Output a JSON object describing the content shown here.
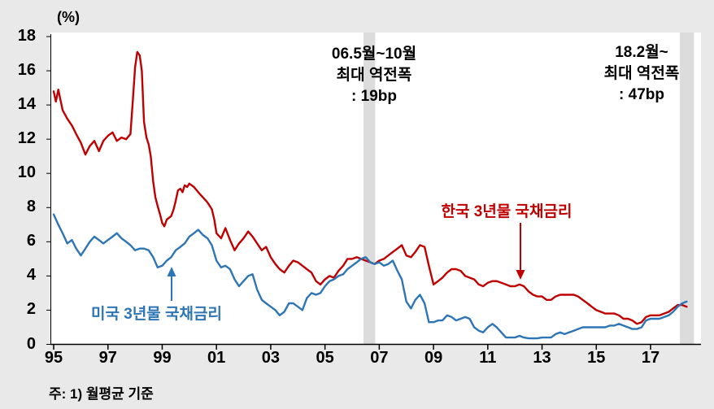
{
  "colors": {
    "korea": "#c00000",
    "us": "#2e75b6",
    "band": "#dcdcdc",
    "axis": "#000000",
    "background": "#e9e9e9",
    "plot_background": "#ffffff"
  },
  "footnote": "주: 1) 월평균 기준",
  "chart_data": {
    "type": "line",
    "title": "",
    "unit_label": "(%)",
    "xlabel": "",
    "ylabel": "",
    "xlim": [
      1995,
      2018.9
    ],
    "ylim": [
      0,
      18
    ],
    "grid": false,
    "legend_position": "inline-labels-with-arrows",
    "y_ticks": [
      0,
      2,
      4,
      6,
      8,
      10,
      12,
      14,
      16,
      18
    ],
    "x_tick_labels": [
      "95",
      "97",
      "99",
      "01",
      "03",
      "05",
      "07",
      "09",
      "11",
      "13",
      "15",
      "17"
    ],
    "x_tick_years": [
      1995,
      1997,
      1999,
      2001,
      2003,
      2005,
      2007,
      2009,
      2011,
      2013,
      2015,
      2017
    ],
    "shaded_bands": [
      {
        "x_start": 2006.42,
        "x_end": 2006.85,
        "label": "2006 yield inversion period"
      },
      {
        "x_start": 2018.08,
        "x_end": 2018.6,
        "label": "2018 yield inversion period"
      }
    ],
    "annotations": [
      {
        "lines": [
          "06.5월~10월",
          "최대 역전폭",
          ": 19bp"
        ]
      },
      {
        "lines": [
          "18.2월~",
          "최대 역전폭",
          ": 47bp"
        ]
      }
    ],
    "series": [
      {
        "name": "한국 3년물 국채금리",
        "color": "#c00000",
        "points": [
          [
            1995.0,
            14.8
          ],
          [
            1995.08,
            14.2
          ],
          [
            1995.17,
            14.9
          ],
          [
            1995.33,
            13.7
          ],
          [
            1995.5,
            13.2
          ],
          [
            1995.67,
            12.8
          ],
          [
            1995.83,
            12.3
          ],
          [
            1996.0,
            11.8
          ],
          [
            1996.17,
            11.1
          ],
          [
            1996.33,
            11.6
          ],
          [
            1996.5,
            11.9
          ],
          [
            1996.67,
            11.3
          ],
          [
            1996.83,
            11.9
          ],
          [
            1997.0,
            12.2
          ],
          [
            1997.17,
            12.4
          ],
          [
            1997.33,
            11.9
          ],
          [
            1997.5,
            12.1
          ],
          [
            1997.67,
            12.0
          ],
          [
            1997.83,
            12.3
          ],
          [
            1997.92,
            14.3
          ],
          [
            1998.0,
            16.2
          ],
          [
            1998.08,
            17.1
          ],
          [
            1998.17,
            16.9
          ],
          [
            1998.25,
            16.0
          ],
          [
            1998.33,
            13.0
          ],
          [
            1998.42,
            12.1
          ],
          [
            1998.5,
            11.7
          ],
          [
            1998.58,
            11.0
          ],
          [
            1998.67,
            9.5
          ],
          [
            1998.75,
            8.6
          ],
          [
            1998.83,
            8.1
          ],
          [
            1998.92,
            7.6
          ],
          [
            1999.0,
            7.1
          ],
          [
            1999.08,
            6.9
          ],
          [
            1999.17,
            7.3
          ],
          [
            1999.33,
            7.5
          ],
          [
            1999.42,
            7.9
          ],
          [
            1999.5,
            8.4
          ],
          [
            1999.58,
            9.0
          ],
          [
            1999.67,
            9.1
          ],
          [
            1999.75,
            8.9
          ],
          [
            1999.83,
            9.3
          ],
          [
            1999.92,
            9.2
          ],
          [
            2000.0,
            9.4
          ],
          [
            2000.17,
            9.2
          ],
          [
            2000.33,
            8.9
          ],
          [
            2000.5,
            8.6
          ],
          [
            2000.67,
            8.3
          ],
          [
            2000.83,
            7.9
          ],
          [
            2000.92,
            7.3
          ],
          [
            2001.0,
            6.5
          ],
          [
            2001.17,
            6.2
          ],
          [
            2001.33,
            6.8
          ],
          [
            2001.5,
            6.1
          ],
          [
            2001.67,
            5.5
          ],
          [
            2001.83,
            5.9
          ],
          [
            2002.0,
            6.2
          ],
          [
            2002.17,
            6.6
          ],
          [
            2002.33,
            6.3
          ],
          [
            2002.5,
            5.9
          ],
          [
            2002.67,
            5.5
          ],
          [
            2002.83,
            5.7
          ],
          [
            2003.0,
            5.1
          ],
          [
            2003.17,
            4.7
          ],
          [
            2003.33,
            4.4
          ],
          [
            2003.5,
            4.2
          ],
          [
            2003.67,
            4.6
          ],
          [
            2003.83,
            4.9
          ],
          [
            2004.0,
            4.8
          ],
          [
            2004.17,
            4.6
          ],
          [
            2004.33,
            4.4
          ],
          [
            2004.5,
            4.2
          ],
          [
            2004.67,
            3.7
          ],
          [
            2004.83,
            3.5
          ],
          [
            2005.0,
            3.8
          ],
          [
            2005.17,
            4.0
          ],
          [
            2005.33,
            3.9
          ],
          [
            2005.5,
            4.3
          ],
          [
            2005.67,
            4.6
          ],
          [
            2005.83,
            5.0
          ],
          [
            2006.0,
            5.0
          ],
          [
            2006.17,
            5.1
          ],
          [
            2006.33,
            5.0
          ],
          [
            2006.5,
            4.9
          ],
          [
            2006.67,
            4.8
          ],
          [
            2006.83,
            4.7
          ],
          [
            2007.0,
            4.9
          ],
          [
            2007.17,
            5.0
          ],
          [
            2007.33,
            5.2
          ],
          [
            2007.5,
            5.4
          ],
          [
            2007.67,
            5.6
          ],
          [
            2007.83,
            5.8
          ],
          [
            2008.0,
            5.2
          ],
          [
            2008.17,
            5.1
          ],
          [
            2008.33,
            5.4
          ],
          [
            2008.5,
            5.8
          ],
          [
            2008.67,
            5.7
          ],
          [
            2008.83,
            4.6
          ],
          [
            2009.0,
            3.5
          ],
          [
            2009.17,
            3.7
          ],
          [
            2009.33,
            3.9
          ],
          [
            2009.5,
            4.2
          ],
          [
            2009.67,
            4.4
          ],
          [
            2009.83,
            4.4
          ],
          [
            2010.0,
            4.3
          ],
          [
            2010.17,
            4.0
          ],
          [
            2010.33,
            3.9
          ],
          [
            2010.5,
            3.8
          ],
          [
            2010.67,
            3.5
          ],
          [
            2010.83,
            3.4
          ],
          [
            2011.0,
            3.6
          ],
          [
            2011.17,
            3.7
          ],
          [
            2011.33,
            3.7
          ],
          [
            2011.5,
            3.6
          ],
          [
            2011.67,
            3.5
          ],
          [
            2011.83,
            3.4
          ],
          [
            2012.0,
            3.4
          ],
          [
            2012.17,
            3.5
          ],
          [
            2012.33,
            3.4
          ],
          [
            2012.5,
            3.1
          ],
          [
            2012.67,
            2.9
          ],
          [
            2012.83,
            2.8
          ],
          [
            2013.0,
            2.8
          ],
          [
            2013.17,
            2.6
          ],
          [
            2013.33,
            2.6
          ],
          [
            2013.5,
            2.8
          ],
          [
            2013.67,
            2.9
          ],
          [
            2013.83,
            2.9
          ],
          [
            2014.0,
            2.9
          ],
          [
            2014.17,
            2.9
          ],
          [
            2014.33,
            2.8
          ],
          [
            2014.5,
            2.6
          ],
          [
            2014.67,
            2.4
          ],
          [
            2014.83,
            2.2
          ],
          [
            2015.0,
            2.0
          ],
          [
            2015.17,
            1.9
          ],
          [
            2015.33,
            1.8
          ],
          [
            2015.5,
            1.8
          ],
          [
            2015.67,
            1.8
          ],
          [
            2015.83,
            1.7
          ],
          [
            2016.0,
            1.5
          ],
          [
            2016.17,
            1.5
          ],
          [
            2016.33,
            1.4
          ],
          [
            2016.5,
            1.2
          ],
          [
            2016.67,
            1.3
          ],
          [
            2016.83,
            1.6
          ],
          [
            2017.0,
            1.7
          ],
          [
            2017.17,
            1.7
          ],
          [
            2017.33,
            1.7
          ],
          [
            2017.5,
            1.8
          ],
          [
            2017.67,
            1.9
          ],
          [
            2017.83,
            2.1
          ],
          [
            2018.0,
            2.3
          ],
          [
            2018.17,
            2.3
          ],
          [
            2018.33,
            2.2
          ]
        ]
      },
      {
        "name": "미국 3년물 국채금리",
        "color": "#2e75b6",
        "points": [
          [
            1995.0,
            7.6
          ],
          [
            1995.17,
            7.0
          ],
          [
            1995.33,
            6.5
          ],
          [
            1995.5,
            5.9
          ],
          [
            1995.67,
            6.1
          ],
          [
            1995.83,
            5.6
          ],
          [
            1996.0,
            5.2
          ],
          [
            1996.17,
            5.6
          ],
          [
            1996.33,
            6.0
          ],
          [
            1996.5,
            6.3
          ],
          [
            1996.67,
            6.1
          ],
          [
            1996.83,
            5.9
          ],
          [
            1997.0,
            6.1
          ],
          [
            1997.17,
            6.3
          ],
          [
            1997.33,
            6.5
          ],
          [
            1997.5,
            6.2
          ],
          [
            1997.67,
            6.0
          ],
          [
            1997.83,
            5.8
          ],
          [
            1998.0,
            5.5
          ],
          [
            1998.17,
            5.6
          ],
          [
            1998.33,
            5.6
          ],
          [
            1998.5,
            5.5
          ],
          [
            1998.67,
            5.1
          ],
          [
            1998.83,
            4.5
          ],
          [
            1999.0,
            4.6
          ],
          [
            1999.17,
            4.9
          ],
          [
            1999.33,
            5.1
          ],
          [
            1999.5,
            5.5
          ],
          [
            1999.67,
            5.7
          ],
          [
            1999.83,
            5.9
          ],
          [
            2000.0,
            6.3
          ],
          [
            2000.17,
            6.5
          ],
          [
            2000.33,
            6.7
          ],
          [
            2000.5,
            6.4
          ],
          [
            2000.67,
            6.2
          ],
          [
            2000.83,
            5.8
          ],
          [
            2001.0,
            4.9
          ],
          [
            2001.17,
            4.5
          ],
          [
            2001.33,
            4.6
          ],
          [
            2001.5,
            4.4
          ],
          [
            2001.67,
            3.8
          ],
          [
            2001.83,
            3.4
          ],
          [
            2002.0,
            3.7
          ],
          [
            2002.17,
            4.0
          ],
          [
            2002.33,
            4.1
          ],
          [
            2002.5,
            3.2
          ],
          [
            2002.67,
            2.6
          ],
          [
            2002.83,
            2.4
          ],
          [
            2003.0,
            2.2
          ],
          [
            2003.17,
            2.0
          ],
          [
            2003.33,
            1.7
          ],
          [
            2003.5,
            1.9
          ],
          [
            2003.67,
            2.4
          ],
          [
            2003.83,
            2.4
          ],
          [
            2004.0,
            2.2
          ],
          [
            2004.17,
            2.0
          ],
          [
            2004.33,
            2.7
          ],
          [
            2004.5,
            3.0
          ],
          [
            2004.67,
            2.9
          ],
          [
            2004.83,
            3.0
          ],
          [
            2005.0,
            3.4
          ],
          [
            2005.17,
            3.7
          ],
          [
            2005.33,
            3.8
          ],
          [
            2005.5,
            4.0
          ],
          [
            2005.67,
            4.1
          ],
          [
            2005.83,
            4.4
          ],
          [
            2006.0,
            4.6
          ],
          [
            2006.17,
            4.8
          ],
          [
            2006.33,
            5.0
          ],
          [
            2006.5,
            5.1
          ],
          [
            2006.67,
            4.8
          ],
          [
            2006.83,
            4.7
          ],
          [
            2007.0,
            4.8
          ],
          [
            2007.17,
            4.6
          ],
          [
            2007.33,
            4.7
          ],
          [
            2007.5,
            4.9
          ],
          [
            2007.67,
            4.3
          ],
          [
            2007.83,
            3.8
          ],
          [
            2008.0,
            2.5
          ],
          [
            2008.17,
            2.1
          ],
          [
            2008.33,
            2.6
          ],
          [
            2008.5,
            2.9
          ],
          [
            2008.67,
            2.4
          ],
          [
            2008.83,
            1.3
          ],
          [
            2009.0,
            1.3
          ],
          [
            2009.17,
            1.4
          ],
          [
            2009.33,
            1.4
          ],
          [
            2009.5,
            1.7
          ],
          [
            2009.67,
            1.6
          ],
          [
            2009.83,
            1.4
          ],
          [
            2010.0,
            1.5
          ],
          [
            2010.17,
            1.6
          ],
          [
            2010.33,
            1.5
          ],
          [
            2010.5,
            1.0
          ],
          [
            2010.67,
            0.8
          ],
          [
            2010.83,
            0.7
          ],
          [
            2011.0,
            1.0
          ],
          [
            2011.17,
            1.2
          ],
          [
            2011.33,
            1.0
          ],
          [
            2011.5,
            0.7
          ],
          [
            2011.67,
            0.4
          ],
          [
            2011.83,
            0.4
          ],
          [
            2012.0,
            0.4
          ],
          [
            2012.17,
            0.5
          ],
          [
            2012.33,
            0.4
          ],
          [
            2012.5,
            0.35
          ],
          [
            2012.67,
            0.35
          ],
          [
            2012.83,
            0.35
          ],
          [
            2013.0,
            0.4
          ],
          [
            2013.17,
            0.4
          ],
          [
            2013.33,
            0.4
          ],
          [
            2013.5,
            0.6
          ],
          [
            2013.67,
            0.7
          ],
          [
            2013.83,
            0.6
          ],
          [
            2014.0,
            0.7
          ],
          [
            2014.17,
            0.8
          ],
          [
            2014.33,
            0.9
          ],
          [
            2014.5,
            1.0
          ],
          [
            2014.67,
            1.0
          ],
          [
            2014.83,
            1.0
          ],
          [
            2015.0,
            1.0
          ],
          [
            2015.17,
            1.0
          ],
          [
            2015.33,
            1.0
          ],
          [
            2015.5,
            1.1
          ],
          [
            2015.67,
            1.1
          ],
          [
            2015.83,
            1.2
          ],
          [
            2016.0,
            1.1
          ],
          [
            2016.17,
            1.0
          ],
          [
            2016.33,
            0.9
          ],
          [
            2016.5,
            0.9
          ],
          [
            2016.67,
            1.0
          ],
          [
            2016.83,
            1.4
          ],
          [
            2017.0,
            1.5
          ],
          [
            2017.17,
            1.5
          ],
          [
            2017.33,
            1.5
          ],
          [
            2017.5,
            1.6
          ],
          [
            2017.67,
            1.7
          ],
          [
            2017.83,
            1.9
          ],
          [
            2018.0,
            2.2
          ],
          [
            2018.17,
            2.4
          ],
          [
            2018.33,
            2.5
          ]
        ]
      }
    ]
  }
}
